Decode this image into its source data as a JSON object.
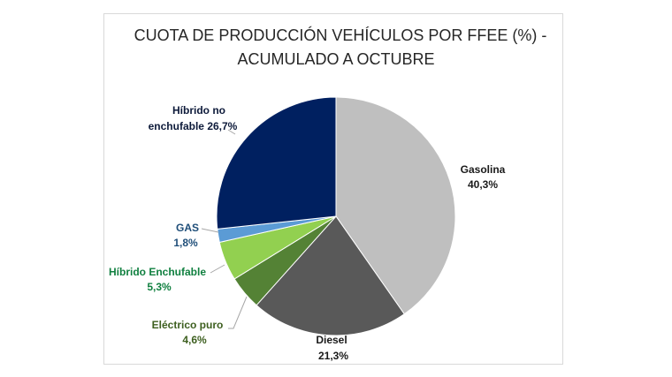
{
  "chart_data": {
    "type": "pie",
    "title_lines": [
      "CUOTA DE PRODUCCIÓN VEHÍCULOS POR FFEE (%)  -",
      "ACUMULADO A OCTUBRE"
    ],
    "start": "top",
    "direction": "clockwise",
    "slices": [
      {
        "name": "Gasolina",
        "value": 40.3,
        "value_label": "40,3%",
        "color": "#bfbfbf",
        "label_color": "#1a1a1a"
      },
      {
        "name": "Diesel",
        "value": 21.3,
        "value_label": "21,3%",
        "color": "#595959",
        "label_color": "#1a1a1a"
      },
      {
        "name": "Eléctrico puro",
        "value": 4.6,
        "value_label": "4,6%",
        "color": "#548235",
        "label_color": "#3d5f1f"
      },
      {
        "name": "Híbrido Enchufable",
        "value": 5.3,
        "value_label": "5,3%",
        "color": "#92d050",
        "label_color": "#118040"
      },
      {
        "name": "GAS",
        "value": 1.8,
        "value_label": "1,8%",
        "color": "#5b9bd5",
        "label_color": "#1f4e79"
      },
      {
        "name": "Híbrido no enchufable",
        "value": 26.7,
        "value_label": "26,7%",
        "color": "#002060",
        "label_color": "#0d1a3a"
      }
    ]
  }
}
